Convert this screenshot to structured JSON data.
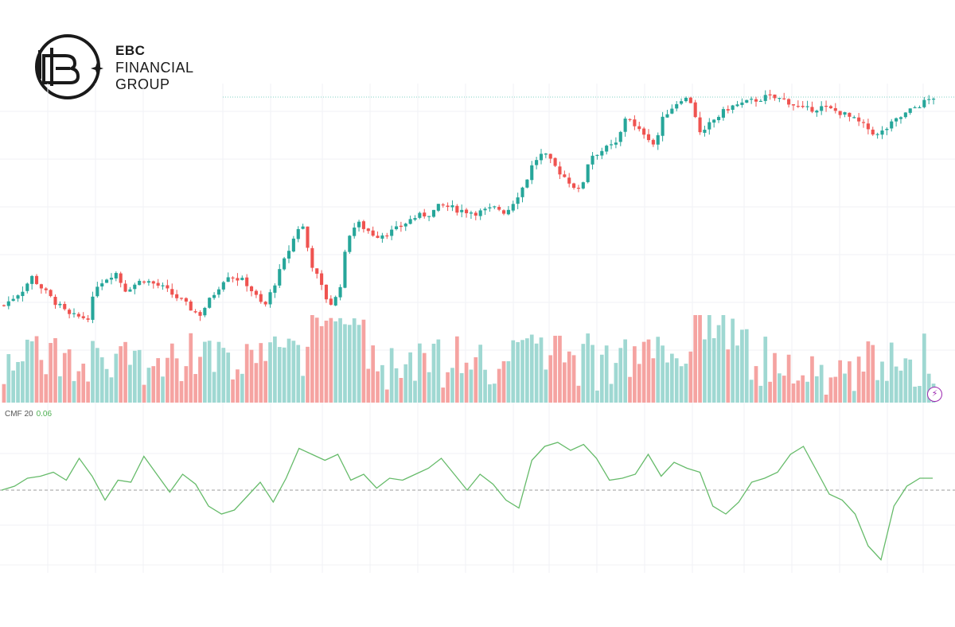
{
  "brand": {
    "line1": "EBC",
    "line2": "FINANCIAL",
    "line3": "GROUP"
  },
  "indicator": {
    "name": "CMF 20",
    "value": "0.06",
    "value_color": "#4caf50"
  },
  "colors": {
    "up": "#26a69a",
    "down": "#ef5350",
    "vol_up": "#9fd8d2",
    "vol_down": "#f5a3a1",
    "cmf_line": "#66bb6a",
    "grid": "#f0f2f5",
    "level_line": "#7fd0c4"
  },
  "icons": {
    "bolt": "lightning-bolt-icon"
  },
  "chart_data": [
    {
      "type": "candlestick",
      "title": "",
      "xlabel": "",
      "ylabel": "",
      "grid": true,
      "path": [
        [
          0,
          0.19
        ],
        [
          0.02,
          0.25
        ],
        [
          0.03,
          0.3
        ],
        [
          0.05,
          0.22
        ],
        [
          0.07,
          0.15
        ],
        [
          0.09,
          0.14
        ],
        [
          0.1,
          0.27
        ],
        [
          0.12,
          0.32
        ],
        [
          0.13,
          0.25
        ],
        [
          0.15,
          0.29
        ],
        [
          0.17,
          0.26
        ],
        [
          0.19,
          0.21
        ],
        [
          0.21,
          0.15
        ],
        [
          0.24,
          0.31
        ],
        [
          0.26,
          0.28
        ],
        [
          0.28,
          0.18
        ],
        [
          0.3,
          0.35
        ],
        [
          0.32,
          0.52
        ],
        [
          0.33,
          0.36
        ],
        [
          0.35,
          0.19
        ],
        [
          0.36,
          0.23
        ],
        [
          0.37,
          0.46
        ],
        [
          0.38,
          0.51
        ],
        [
          0.4,
          0.46
        ],
        [
          0.42,
          0.48
        ],
        [
          0.44,
          0.53
        ],
        [
          0.46,
          0.55
        ],
        [
          0.47,
          0.58
        ],
        [
          0.49,
          0.56
        ],
        [
          0.51,
          0.55
        ],
        [
          0.53,
          0.57
        ],
        [
          0.54,
          0.55
        ],
        [
          0.56,
          0.66
        ],
        [
          0.57,
          0.75
        ],
        [
          0.58,
          0.78
        ],
        [
          0.6,
          0.7
        ],
        [
          0.62,
          0.63
        ],
        [
          0.63,
          0.77
        ],
        [
          0.66,
          0.82
        ],
        [
          0.67,
          0.94
        ],
        [
          0.68,
          0.87
        ],
        [
          0.69,
          0.86
        ],
        [
          0.7,
          0.81
        ],
        [
          0.71,
          0.93
        ],
        [
          0.73,
          1.0
        ],
        [
          0.74,
          0.98
        ],
        [
          0.75,
          0.84
        ],
        [
          0.76,
          0.9
        ],
        [
          0.78,
          0.96
        ],
        [
          0.8,
          0.98
        ],
        [
          0.82,
          1.0
        ],
        [
          0.84,
          0.99
        ],
        [
          0.86,
          0.95
        ],
        [
          0.88,
          0.96
        ],
        [
          0.9,
          0.94
        ],
        [
          0.92,
          0.9
        ],
        [
          0.94,
          0.85
        ],
        [
          0.96,
          0.91
        ],
        [
          0.98,
          0.96
        ],
        [
          1,
          1.0
        ]
      ]
    },
    {
      "type": "line",
      "title": "CMF 20",
      "xlabel": "",
      "ylabel": "",
      "grid": true,
      "zero_line": "dashed",
      "values": [
        0.0,
        0.02,
        0.06,
        0.07,
        0.09,
        0.05,
        0.16,
        0.07,
        -0.05,
        0.05,
        0.04,
        0.17,
        0.08,
        -0.01,
        0.08,
        0.03,
        -0.08,
        -0.12,
        -0.1,
        -0.03,
        0.04,
        -0.06,
        0.06,
        0.21,
        0.18,
        0.15,
        0.18,
        0.05,
        0.08,
        0.01,
        0.06,
        0.05,
        0.08,
        0.11,
        0.16,
        0.08,
        0.0,
        0.08,
        0.03,
        -0.05,
        -0.09,
        0.15,
        0.22,
        0.24,
        0.2,
        0.23,
        0.16,
        0.05,
        0.06,
        0.08,
        0.18,
        0.07,
        0.14,
        0.11,
        0.09,
        -0.08,
        -0.12,
        -0.06,
        0.04,
        0.06,
        0.09,
        0.18,
        0.22,
        0.1,
        -0.02,
        -0.05,
        -0.12,
        -0.28,
        -0.35,
        -0.08,
        0.02,
        0.06,
        0.06
      ]
    }
  ]
}
